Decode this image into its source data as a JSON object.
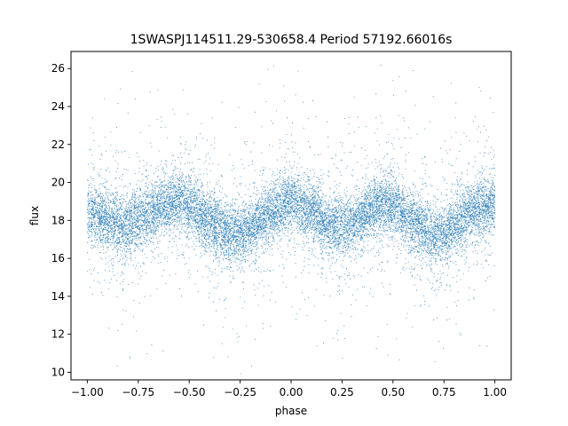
{
  "chart_data": {
    "type": "scatter",
    "title": "1SWASPJ114511.29-530658.4 Period 57192.66016s",
    "xlabel": "phase",
    "ylabel": "flux",
    "xlim": [
      -1.08,
      1.08
    ],
    "ylim": [
      9.6,
      26.9
    ],
    "x_ticks": [
      -1.0,
      -0.75,
      -0.5,
      -0.25,
      0.0,
      0.25,
      0.5,
      0.75,
      1.0
    ],
    "x_tick_labels": [
      "−1.00",
      "−0.75",
      "−0.50",
      "−0.25",
      "0.00",
      "0.25",
      "0.50",
      "0.75",
      "1.00"
    ],
    "y_ticks": [
      10,
      12,
      14,
      16,
      18,
      20,
      22,
      24,
      26
    ],
    "y_tick_labels": [
      "10",
      "12",
      "14",
      "16",
      "18",
      "20",
      "22",
      "24",
      "26"
    ],
    "point_color": "#1f77b4",
    "grid": false,
    "legend": "none",
    "series": [
      {
        "phase": [
          -1.0,
          -0.9,
          -0.8,
          -0.7,
          -0.6,
          -0.55,
          -0.5,
          -0.4,
          -0.3,
          -0.25,
          -0.2,
          -0.1,
          0.0,
          0.1,
          0.2,
          0.25,
          0.3,
          0.4,
          0.45,
          0.5,
          0.6,
          0.7,
          0.75,
          0.8,
          0.9,
          1.0
        ],
        "mean_flux": [
          18.4,
          18.0,
          17.7,
          18.3,
          18.9,
          19.1,
          18.8,
          17.9,
          17.3,
          17.2,
          17.6,
          18.4,
          19.0,
          18.5,
          17.7,
          17.6,
          17.8,
          18.6,
          18.9,
          18.7,
          17.8,
          17.2,
          17.3,
          17.8,
          18.5,
          18.8
        ]
      }
    ]
  }
}
